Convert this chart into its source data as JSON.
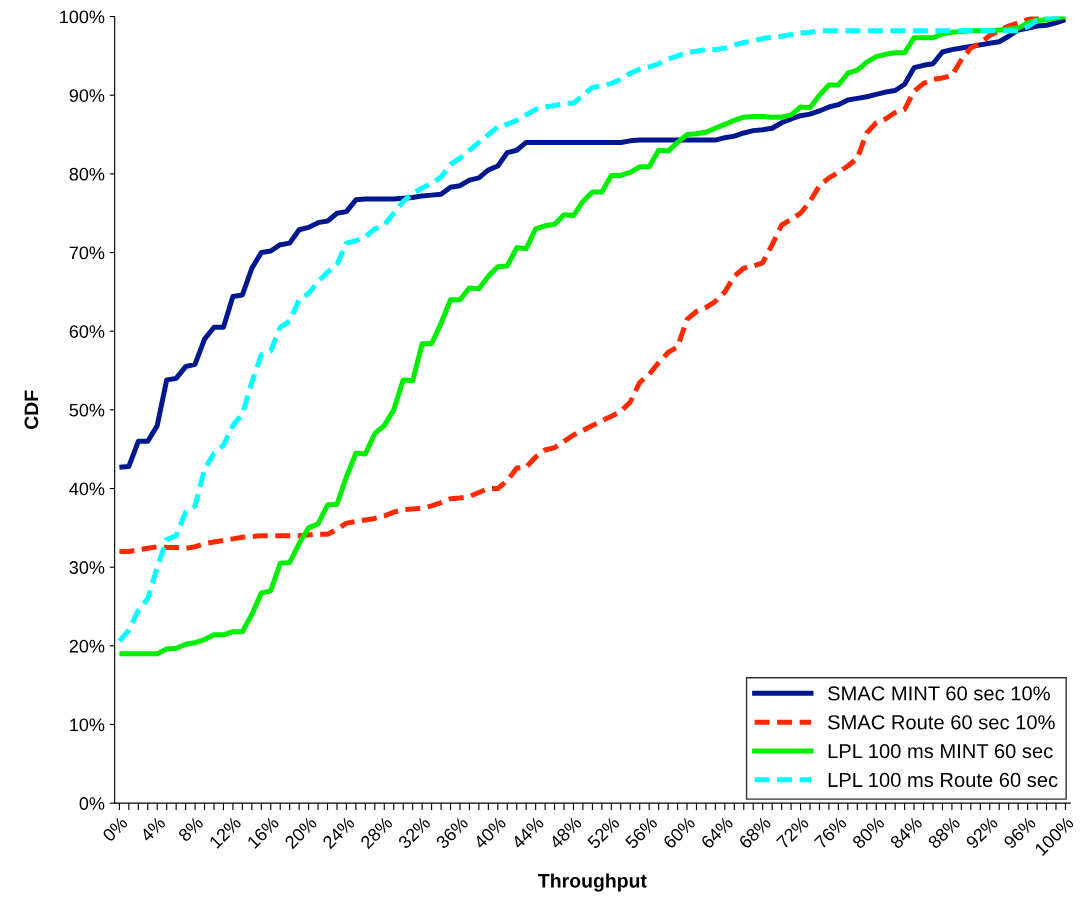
{
  "chart_data": {
    "type": "line",
    "xlabel": "Throughput",
    "ylabel": "CDF",
    "categories": [
      "0%",
      null,
      null,
      null,
      "4%",
      null,
      null,
      null,
      "8%",
      null,
      null,
      null,
      "12%",
      null,
      null,
      null,
      "16%",
      null,
      null,
      null,
      "20%",
      null,
      null,
      null,
      "24%",
      null,
      null,
      null,
      "28%",
      null,
      null,
      null,
      "32%",
      null,
      null,
      null,
      "36%",
      null,
      null,
      null,
      "40%",
      null,
      null,
      null,
      "44%",
      null,
      null,
      null,
      "48%",
      null,
      null,
      null,
      "52%",
      null,
      null,
      null,
      "56%",
      null,
      null,
      null,
      "60%",
      null,
      null,
      null,
      "64%",
      null,
      null,
      null,
      "68%",
      null,
      null,
      null,
      "72%",
      null,
      null,
      null,
      "76%",
      null,
      null,
      null,
      "80%",
      null,
      null,
      null,
      "84%",
      null,
      null,
      null,
      "88%",
      null,
      null,
      null,
      "92%",
      null,
      null,
      null,
      "96%",
      null,
      null,
      null,
      "100%"
    ],
    "ylim": [
      0,
      100
    ],
    "yticks": [
      {
        "value": 0,
        "label": "0%"
      },
      {
        "value": 10,
        "label": "10%"
      },
      {
        "value": 20,
        "label": "20%"
      },
      {
        "value": 30,
        "label": "30%"
      },
      {
        "value": 40,
        "label": "40%"
      },
      {
        "value": 50,
        "label": "50%"
      },
      {
        "value": 60,
        "label": "60%"
      },
      {
        "value": 70,
        "label": "70%"
      },
      {
        "value": 80,
        "label": "80%"
      },
      {
        "value": 90,
        "label": "90%"
      },
      {
        "value": 100,
        "label": "100%"
      }
    ],
    "grid": false,
    "legend": "bottom right",
    "marker": "none",
    "series": [
      {
        "name": "SMAC MINT 60 sec 10%",
        "color": "#00188f",
        "line_style": "solid",
        "values": [
          42.7,
          42.8,
          46,
          46,
          48,
          53.8,
          54,
          55.5,
          55.8,
          59,
          60.5,
          60.5,
          64.4,
          64.6,
          68,
          70,
          70.2,
          71,
          71.2,
          72.9,
          73.2,
          73.8,
          74,
          75,
          75.2,
          76.7,
          76.8,
          76.8,
          76.8,
          76.8,
          76.9,
          77,
          77.2,
          77.3,
          77.4,
          78.3,
          78.5,
          79.2,
          79.5,
          80.5,
          81,
          82.7,
          83,
          84,
          84,
          84,
          84,
          84,
          84,
          84,
          84,
          84,
          84,
          84,
          84.2,
          84.3,
          84.3,
          84.3,
          84.3,
          84.3,
          84.3,
          84.3,
          84.3,
          84.3,
          84.6,
          84.8,
          85.2,
          85.5,
          85.6,
          85.8,
          86.5,
          87,
          87.4,
          87.6,
          88,
          88.5,
          88.8,
          89.4,
          89.6,
          89.8,
          90.1,
          90.4,
          90.6,
          91.4,
          93.5,
          93.8,
          94,
          95.5,
          95.8,
          96,
          96.2,
          96.4,
          96.6,
          96.8,
          97.5,
          98.3,
          98.5,
          98.8,
          98.9,
          99.2,
          99.6
        ]
      },
      {
        "name": "SMAC Route 60 sec 10%",
        "color": "#ff2a00",
        "line_style": "dashed",
        "values": [
          32,
          32,
          32.2,
          32.4,
          32.6,
          32.5,
          32.5,
          32.4,
          32.6,
          33,
          33.2,
          33.4,
          33.6,
          33.8,
          33.9,
          34,
          34,
          34,
          34,
          34,
          34.1,
          34.2,
          34.2,
          34.8,
          35.6,
          35.8,
          36,
          36.2,
          36.5,
          37,
          37.3,
          37.4,
          37.5,
          37.8,
          38.2,
          38.7,
          38.8,
          39,
          39.5,
          40,
          40,
          41,
          42.6,
          42.7,
          44,
          44.9,
          45.2,
          46,
          46.8,
          47.4,
          48,
          48.6,
          49.2,
          49.8,
          51,
          53.5,
          54.5,
          56,
          57.3,
          58,
          61.5,
          62.5,
          63,
          63.8,
          65,
          67,
          68,
          68.3,
          68.7,
          71,
          73.5,
          74.2,
          75,
          76.5,
          78.5,
          79.5,
          80.2,
          81,
          82,
          85.2,
          86.5,
          87,
          87.8,
          88.2,
          90.5,
          91.5,
          92,
          92.2,
          92.5,
          94.5,
          96,
          96.6,
          97.6,
          98.2,
          98.8,
          99.2,
          99.6,
          100,
          100,
          null,
          null
        ]
      },
      {
        "name": "LPL 100 ms MINT 60 sec",
        "color": "#00ee00",
        "line_style": "solid",
        "values": [
          19,
          19,
          19,
          19,
          19,
          19.6,
          19.7,
          20.2,
          20.4,
          20.8,
          21.4,
          21.4,
          21.8,
          21.8,
          24,
          26.7,
          27,
          30.5,
          30.6,
          33,
          35,
          35.5,
          37.9,
          38,
          41.5,
          44.5,
          44.4,
          47,
          48,
          50,
          53.8,
          53.7,
          58.4,
          58.4,
          61,
          64,
          64,
          65.5,
          65.4,
          67,
          68.2,
          68.3,
          70.6,
          70.5,
          73,
          73.4,
          73.6,
          74.8,
          74.7,
          76.5,
          77.7,
          77.7,
          79.8,
          79.8,
          80.2,
          80.9,
          80.9,
          83,
          82.9,
          84,
          85,
          85.1,
          85.3,
          85.8,
          86.3,
          86.8,
          87.2,
          87.3,
          87.3,
          87.2,
          87.2,
          87.5,
          88.5,
          88.4,
          90,
          91.3,
          91.3,
          92.8,
          93.2,
          94.2,
          94.9,
          95.2,
          95.4,
          95.4,
          97.3,
          97.3,
          97.3,
          97.8,
          98,
          98.1,
          98.2,
          98.2,
          98.2,
          98.3,
          98.4,
          98.5,
          99.2,
          99.5,
          99.6,
          99.8,
          100
        ]
      },
      {
        "name": "LPL 100 ms Route 60 sec",
        "color": "#00ffff",
        "line_style": "dashed",
        "values": [
          20.6,
          22,
          24.5,
          26,
          30,
          33.5,
          34,
          37,
          37.8,
          42.4,
          44.5,
          45.5,
          48,
          49.5,
          53.5,
          57,
          57.5,
          60.5,
          61.3,
          64,
          64.8,
          66.3,
          67.5,
          68.5,
          71.2,
          71.5,
          72,
          73,
          73.5,
          75,
          76.5,
          77.5,
          78.2,
          78.8,
          79.6,
          81.2,
          82,
          83,
          84,
          85,
          86,
          86.3,
          86.8,
          87.5,
          88.2,
          88.5,
          88.7,
          88.9,
          89,
          90,
          91,
          91.2,
          91.5,
          92,
          92.8,
          93.3,
          93.6,
          94,
          94.6,
          95,
          95.4,
          95.6,
          95.8,
          95.8,
          96,
          96.4,
          96.7,
          96.9,
          97.2,
          97.4,
          97.5,
          97.7,
          97.9,
          98,
          98.2,
          98.2,
          98.2,
          98.2,
          98.2,
          98.2,
          98.2,
          98.2,
          98.2,
          98.2,
          98.2,
          98.2,
          98.2,
          98.2,
          98.2,
          98.2,
          98.2,
          98.2,
          98.2,
          98.2,
          98.2,
          98.2,
          98.7,
          99.5,
          99.8,
          100,
          100
        ]
      }
    ]
  }
}
